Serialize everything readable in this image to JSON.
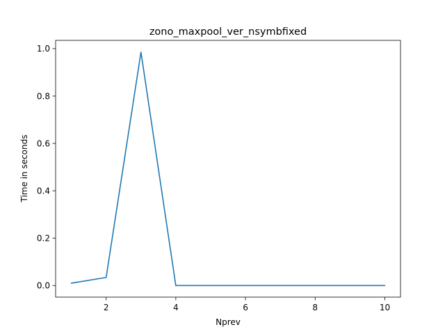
{
  "chart_data": {
    "type": "line",
    "title": "zono_maxpool_ver_nsymbfixed",
    "xlabel": "Nprev",
    "ylabel": "Time in seconds",
    "xlim": [
      0.55,
      10.45
    ],
    "ylim": [
      -0.049,
      1.035
    ],
    "xticks": [
      2,
      4,
      6,
      8,
      10
    ],
    "yticks": [
      0.0,
      0.2,
      0.4,
      0.6,
      0.8,
      1.0
    ],
    "ytick_labels": [
      "0.0",
      "0.2",
      "0.4",
      "0.6",
      "0.8",
      "1.0"
    ],
    "grid": false,
    "series": [
      {
        "color": "#1f77b4",
        "x": [
          1,
          2,
          3,
          4,
          5,
          6,
          7,
          8,
          9,
          10
        ],
        "y": [
          0.01,
          0.034,
          0.985,
          0.0,
          0.0,
          0.0,
          0.0,
          0.0,
          0.0,
          0.0
        ]
      }
    ]
  }
}
